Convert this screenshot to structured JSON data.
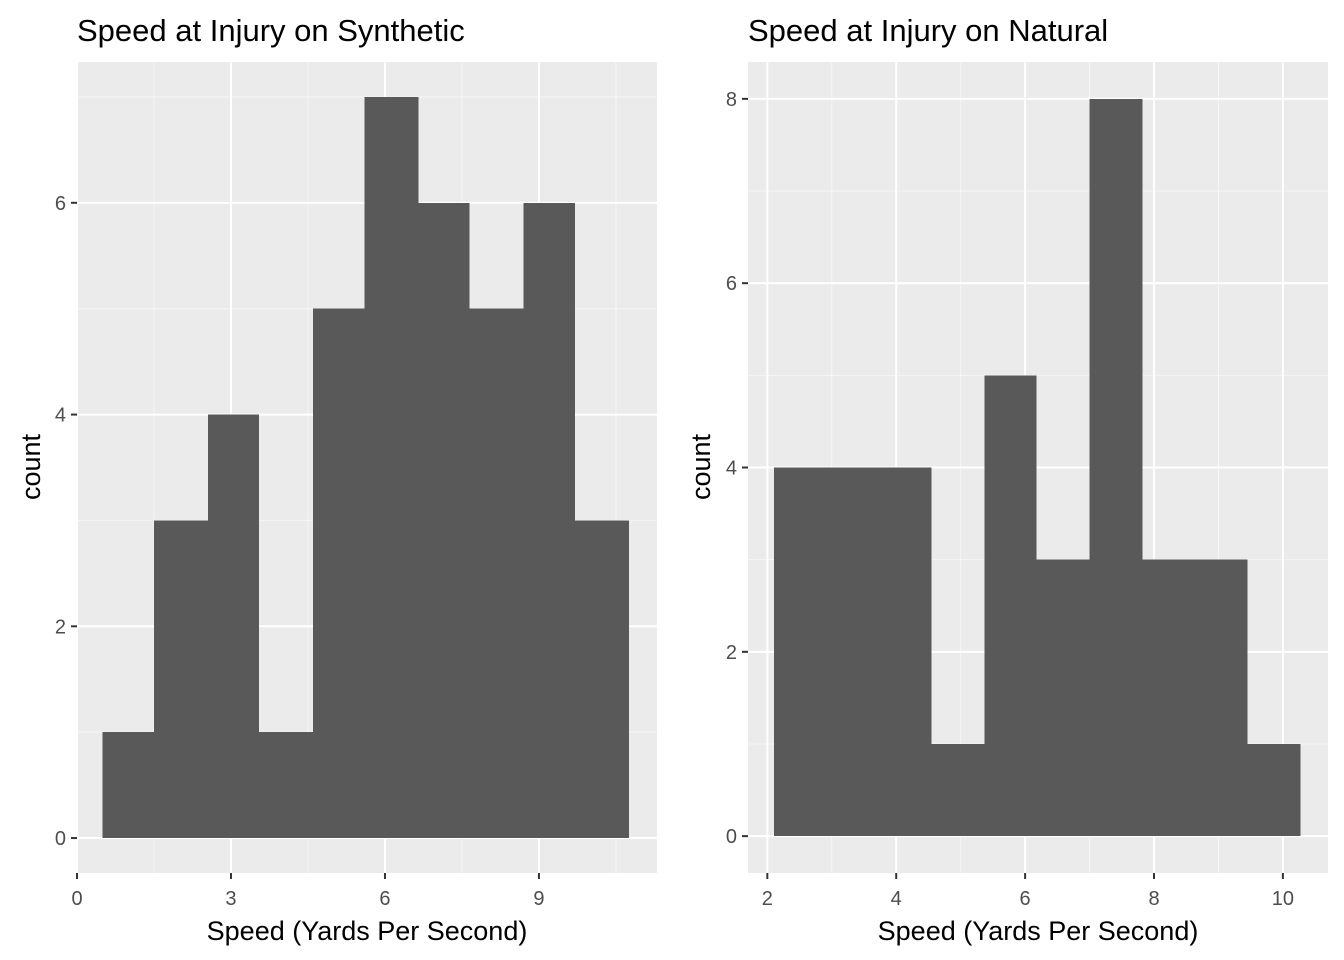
{
  "colors": {
    "panel_background": "#ebebeb",
    "grid_major": "#ffffff",
    "bar_fill": "#595959",
    "tick_mark": "#333333",
    "tick_label": "#4d4d4d"
  },
  "chart_data": [
    {
      "type": "bar",
      "title": "Speed at Injury on Synthetic",
      "xlabel": "Speed (Yards Per Second)",
      "ylabel": "count",
      "xlim": [
        0,
        11.3
      ],
      "ylim": [
        -0.33,
        7.33
      ],
      "x_ticks": [
        0,
        3,
        6,
        9
      ],
      "x_tick_labels": [
        "0",
        "3",
        "6",
        "9"
      ],
      "y_ticks": [
        0,
        2,
        4,
        6
      ],
      "y_tick_labels": [
        "0",
        "2",
        "4",
        "6"
      ],
      "grid": true,
      "bins": [
        {
          "x0": 0.5,
          "x1": 1.5,
          "count": 1
        },
        {
          "x0": 1.5,
          "x1": 2.55,
          "count": 3
        },
        {
          "x0": 2.55,
          "x1": 3.55,
          "count": 4
        },
        {
          "x0": 3.55,
          "x1": 4.6,
          "count": 1
        },
        {
          "x0": 4.6,
          "x1": 5.6,
          "count": 5
        },
        {
          "x0": 5.6,
          "x1": 6.65,
          "count": 7
        },
        {
          "x0": 6.65,
          "x1": 7.65,
          "count": 6
        },
        {
          "x0": 7.65,
          "x1": 8.7,
          "count": 5
        },
        {
          "x0": 8.7,
          "x1": 9.7,
          "count": 6
        },
        {
          "x0": 9.7,
          "x1": 10.75,
          "count": 3
        }
      ]
    },
    {
      "type": "bar",
      "title": "Speed at Injury on Natural",
      "xlabel": "Speed (Yards Per Second)",
      "ylabel": "count",
      "xlim": [
        1.7,
        10.7
      ],
      "ylim": [
        -0.4,
        8.4
      ],
      "x_ticks": [
        2,
        4,
        6,
        8,
        10
      ],
      "x_tick_labels": [
        "2",
        "4",
        "6",
        "8",
        "10"
      ],
      "y_ticks": [
        0,
        2,
        4,
        6,
        8
      ],
      "y_tick_labels": [
        "0",
        "2",
        "4",
        "6",
        "8"
      ],
      "grid": true,
      "bins": [
        {
          "x0": 2.1,
          "x1": 2.92,
          "count": 4
        },
        {
          "x0": 2.92,
          "x1": 3.73,
          "count": 4
        },
        {
          "x0": 3.73,
          "x1": 4.55,
          "count": 4
        },
        {
          "x0": 4.55,
          "x1": 5.37,
          "count": 1
        },
        {
          "x0": 5.37,
          "x1": 6.18,
          "count": 5
        },
        {
          "x0": 6.18,
          "x1": 7.0,
          "count": 3
        },
        {
          "x0": 7.0,
          "x1": 7.82,
          "count": 8
        },
        {
          "x0": 7.82,
          "x1": 8.63,
          "count": 3
        },
        {
          "x0": 8.63,
          "x1": 9.45,
          "count": 3
        },
        {
          "x0": 9.45,
          "x1": 10.27,
          "count": 1
        }
      ]
    }
  ]
}
